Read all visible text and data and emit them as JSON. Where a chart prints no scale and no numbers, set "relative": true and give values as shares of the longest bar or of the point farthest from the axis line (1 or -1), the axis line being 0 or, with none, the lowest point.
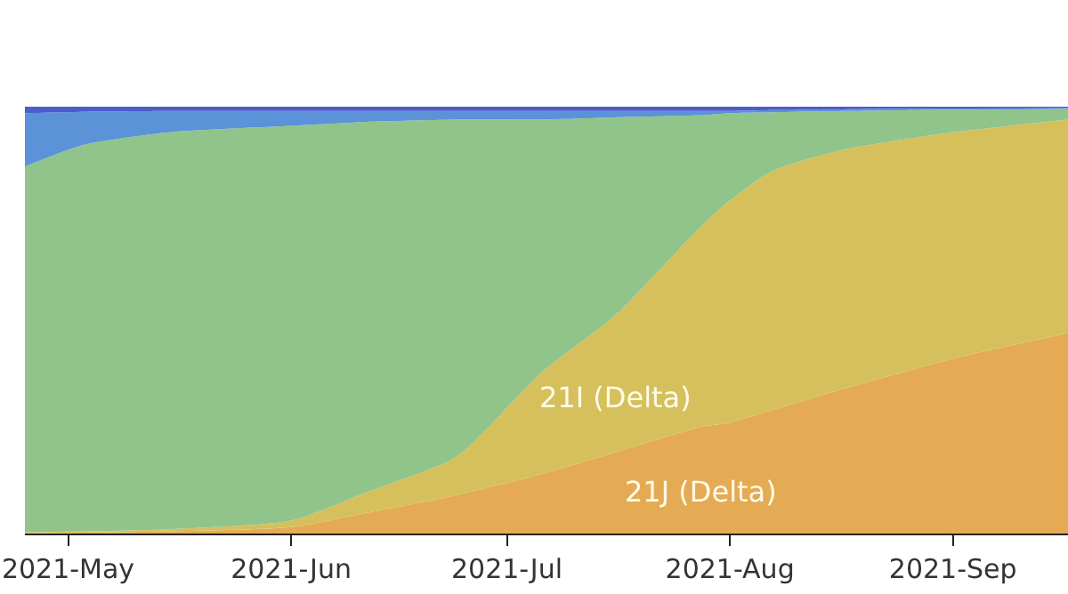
{
  "chart_data": {
    "type": "area",
    "stacked": true,
    "relative": true,
    "x": [
      "2021-04-25",
      "2021-05-03",
      "2021-05-15",
      "2021-06-01",
      "2021-06-12",
      "2021-06-24",
      "2021-07-06",
      "2021-07-16",
      "2021-07-28",
      "2021-08-01",
      "2021-08-07",
      "2021-08-17",
      "2021-09-01",
      "2021-09-17"
    ],
    "series": [
      {
        "name": "21J (Delta)",
        "color": "#e4ab54",
        "values": [
          0,
          0.002,
          0.005,
          0.015,
          0.05,
          0.09,
          0.14,
          0.19,
          0.25,
          0.26,
          0.29,
          0.34,
          0.41,
          0.47
        ]
      },
      {
        "name": "21I (Delta)",
        "color": "#d5c05c",
        "values": [
          0.003,
          0.003,
          0.005,
          0.015,
          0.05,
          0.09,
          0.24,
          0.32,
          0.47,
          0.52,
          0.56,
          0.56,
          0.53,
          0.5
        ]
      },
      {
        "color": "#90c48b",
        "values": [
          0.857,
          0.905,
          0.93,
          0.925,
          0.865,
          0.79,
          0.59,
          0.465,
          0.26,
          0.205,
          0.137,
          0.09,
          0.053,
          0.025
        ]
      },
      {
        "color": "#5b92d8",
        "values": [
          0.125,
          0.078,
          0.05,
          0.035,
          0.025,
          0.02,
          0.02,
          0.015,
          0.01,
          0.005,
          0.005,
          0.004,
          0.003,
          0.002
        ]
      },
      {
        "color": "#4b5dc9",
        "values": [
          0.015,
          0.012,
          0.01,
          0.01,
          0.01,
          0.01,
          0.01,
          0.01,
          0.01,
          0.01,
          0.008,
          0.006,
          0.004,
          0.003
        ]
      }
    ],
    "xlim": [
      "2021-04-25",
      "2021-09-17"
    ],
    "xticks": [
      {
        "value": "2021-05-01",
        "label": "2021-May"
      },
      {
        "value": "2021-06-01",
        "label": "2021-Jun"
      },
      {
        "value": "2021-07-01",
        "label": "2021-Jul"
      },
      {
        "value": "2021-08-01",
        "label": "2021-Aug"
      },
      {
        "value": "2021-09-01",
        "label": "2021-Sep"
      }
    ]
  }
}
